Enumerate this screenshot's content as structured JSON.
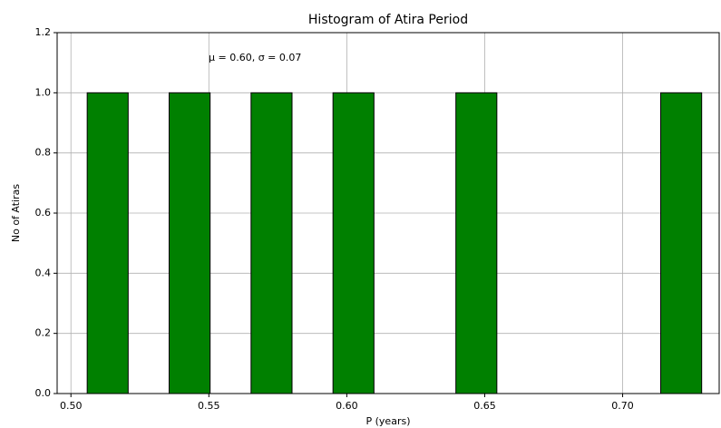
{
  "chart_data": {
    "type": "histogram",
    "title": "Histogram of Atira Period",
    "xlabel": "P (years)",
    "ylabel": "No of Atiras",
    "annotation": "μ = 0.60,  σ = 0.07",
    "bins": [
      0.5059,
      0.52075,
      0.5356,
      0.55045,
      0.5653,
      0.58015,
      0.595,
      0.60985,
      0.6247,
      0.63955,
      0.6544,
      0.66925,
      0.6841,
      0.69895,
      0.7138,
      0.72865
    ],
    "values": [
      1,
      0,
      1,
      0,
      1,
      0,
      1,
      0,
      0,
      1,
      0,
      0,
      0,
      0,
      1
    ],
    "color": "#008000",
    "edgecolor": "#000000",
    "xlim": [
      0.495,
      0.735
    ],
    "xticks": [
      {
        "value": 0.5,
        "label": "0.50"
      },
      {
        "value": 0.55,
        "label": "0.55"
      },
      {
        "value": 0.6,
        "label": "0.60"
      },
      {
        "value": 0.65,
        "label": "0.65"
      },
      {
        "value": 0.7,
        "label": "0.70"
      }
    ],
    "ylim": [
      0,
      1.2
    ],
    "yticks": [
      {
        "value": 0,
        "label": "0.0"
      },
      {
        "value": 0.2,
        "label": "0.2"
      },
      {
        "value": 0.4,
        "label": "0.4"
      },
      {
        "value": 0.6,
        "label": "0.6"
      },
      {
        "value": 0.8,
        "label": "0.8"
      },
      {
        "value": 1,
        "label": "1.0"
      },
      {
        "value": 1.2,
        "label": "1.2"
      }
    ],
    "grid": true
  }
}
